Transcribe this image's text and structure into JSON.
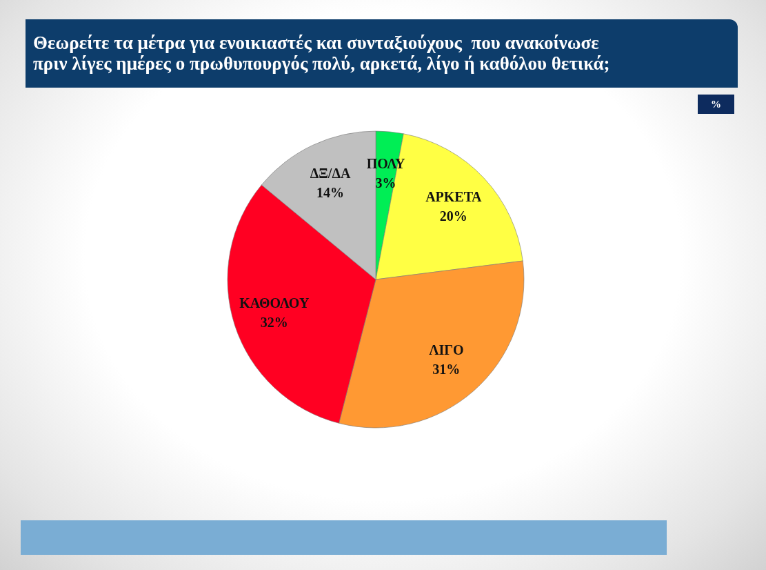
{
  "chart_data": {
    "type": "pie",
    "title": "Θεωρείτε τα μέτρα για ενοικιαστές και συνταξιούχους  που ανακοίνωσε πριν λίγες ημέρες ο πρωθυπουργός πολύ, αρκετά, λίγο ή καθόλου θετικά;",
    "categories": [
      "ΠΟΛΥ",
      "ΑΡΚΕΤΑ",
      "ΛΙΓΟ",
      "ΚΑΘΟΛΟΥ",
      "ΔΞ/ΔΑ"
    ],
    "values": [
      3,
      20,
      31,
      32,
      14
    ],
    "colors": [
      "#00ee55",
      "#ffff44",
      "#ff9933",
      "#ff0022",
      "#c0c0c0"
    ],
    "value_labels": [
      "3%",
      "20%",
      "31%",
      "32%",
      "14%"
    ],
    "annotations": [
      "%"
    ]
  }
}
